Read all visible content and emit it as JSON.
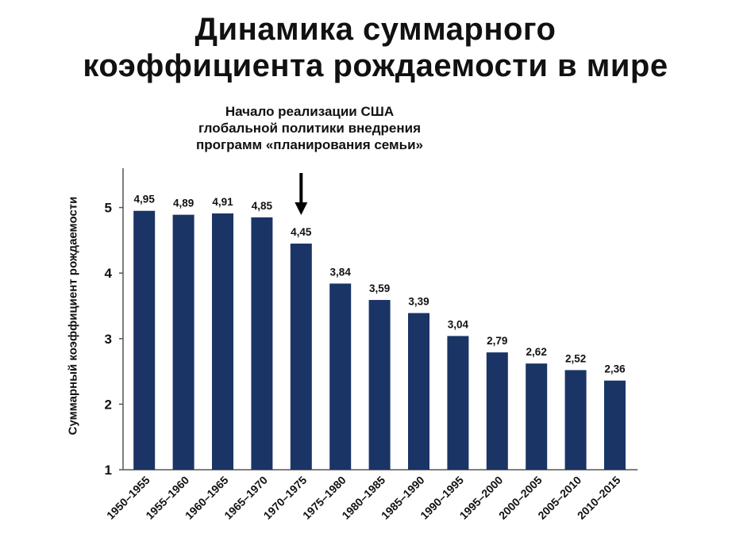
{
  "title_lines": [
    "Динамика суммарного",
    "коэффициента рождаемости в мире"
  ],
  "annotation": "Начало реализации США\nглобальной политики внедрения\nпрограмм «планирования семьи»",
  "colors": {
    "bar": "#1a3466",
    "text": "#111111",
    "axis": "#555555"
  },
  "chart_data": {
    "type": "bar",
    "title": "Динамика суммарного коэффициента рождаемости в мире",
    "xlabel": "",
    "ylabel": "Суммарный коэффициент рождаемости",
    "ylim": [
      1,
      5.6
    ],
    "yticks": [
      1,
      2,
      3,
      4,
      5
    ],
    "grid": false,
    "categories": [
      "1950–1955",
      "1955–1960",
      "1960–1965",
      "1965–1970",
      "1970–1975",
      "1975–1980",
      "1980–1985",
      "1985–1990",
      "1990–1995",
      "1995–2000",
      "2000–2005",
      "2005–2010",
      "2010–2015"
    ],
    "values": [
      4.95,
      4.89,
      4.91,
      4.85,
      4.45,
      3.84,
      3.59,
      3.39,
      3.04,
      2.79,
      2.62,
      2.52,
      2.36
    ],
    "value_labels": [
      "4,95",
      "4,89",
      "4,91",
      "4,85",
      "4,45",
      "3,84",
      "3,59",
      "3,39",
      "3,04",
      "2,79",
      "2,62",
      "2,52",
      "2,36"
    ],
    "annotation_category": "1970–1975"
  }
}
